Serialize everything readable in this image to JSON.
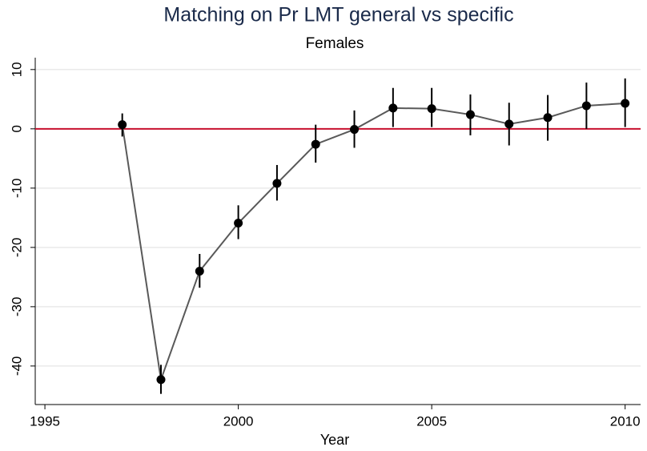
{
  "chart_data": {
    "type": "line",
    "title": "Matching on Pr LMT general vs specific",
    "subtitle": "Females",
    "x_label": "Year",
    "x": [
      1997,
      1998,
      1999,
      2000,
      2001,
      2002,
      2003,
      2004,
      2005,
      2006,
      2007,
      2008,
      2009,
      2010
    ],
    "series": [
      {
        "color": "#595959",
        "marker_color": "#000000",
        "values": [
          0.7,
          -42.3,
          -24.0,
          -15.9,
          -9.2,
          -2.6,
          -0.1,
          3.5,
          3.4,
          2.4,
          0.8,
          1.9,
          3.9,
          4.3
        ],
        "lower": [
          -1.3,
          -44.7,
          -26.8,
          -18.6,
          -12.1,
          -5.7,
          -3.2,
          0.3,
          0.3,
          -1.1,
          -2.8,
          -2.0,
          0.0,
          0.3
        ],
        "upper": [
          2.6,
          -39.8,
          -21.1,
          -12.9,
          -6.1,
          0.7,
          3.1,
          6.9,
          6.9,
          5.8,
          4.4,
          5.7,
          7.8,
          8.5
        ]
      }
    ],
    "hline": 0,
    "hline_color": "#c8102e",
    "xlim": [
      1994.75,
      2010.4
    ],
    "xticks": [
      1995,
      2000,
      2005,
      2010
    ],
    "ylim": [
      -46.5,
      12
    ],
    "yticks": [
      10,
      0,
      -10,
      -20,
      -30,
      -40
    ],
    "grid": true
  }
}
